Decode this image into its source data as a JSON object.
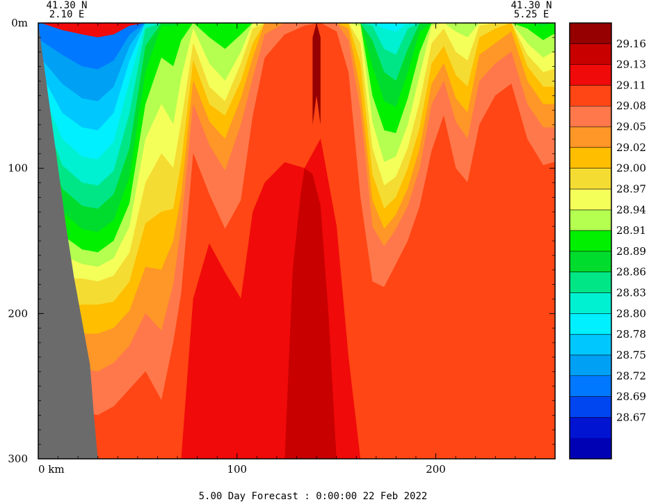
{
  "chart_data": {
    "type": "heatmap",
    "title": "",
    "footer": "5.00 Day Forecast :  0:00:00  22 Feb 2022",
    "xlabel_unit": "km",
    "ylabel_unit": "m",
    "x_ticks": [
      {
        "value": 0,
        "label": "0 km"
      },
      {
        "value": 100,
        "label": "100"
      },
      {
        "value": 200,
        "label": "200"
      }
    ],
    "y_ticks": [
      {
        "value": 0,
        "label": "0m"
      },
      {
        "value": 100,
        "label": "100"
      },
      {
        "value": 200,
        "label": "200"
      },
      {
        "value": 300,
        "label": "300"
      }
    ],
    "xlim": [
      0,
      260
    ],
    "ylim": [
      300,
      0
    ],
    "grid": false,
    "corners": {
      "left": {
        "lat": "41.30 N",
        "lon": "2.10 E"
      },
      "right": {
        "lat": "41.30 N",
        "lon": "5.25 E"
      }
    },
    "land_color": "#6b6b6b",
    "colorbar": {
      "placement": "right",
      "labels": [
        "29.16",
        "29.13",
        "29.11",
        "29.08",
        "29.05",
        "29.02",
        "29.00",
        "28.97",
        "28.94",
        "28.91",
        "28.89",
        "28.86",
        "28.83",
        "28.80",
        "28.78",
        "28.75",
        "28.72",
        "28.69",
        "28.67"
      ],
      "colors": [
        "#0000b4",
        "#0014d2",
        "#0046f0",
        "#0078ff",
        "#00a0f5",
        "#00c8ff",
        "#00f0ff",
        "#00f0d2",
        "#00e687",
        "#00dc2d",
        "#00f000",
        "#b4ff50",
        "#f5ff5a",
        "#f5dc32",
        "#ffbe00",
        "#ff9628",
        "#ff784b",
        "#ff4614",
        "#f00a0a",
        "#c80000",
        "#960000"
      ]
    },
    "columns": [
      {
        "x": 1,
        "bounds": [
          0,
          12,
          24,
          34,
          44,
          58,
          70,
          86,
          104,
          120,
          138,
          156,
          172,
          192,
          220,
          260,
          300
        ]
      },
      {
        "x": 12,
        "bounds": [
          5,
          22,
          42,
          62,
          80,
          98,
          114,
          130,
          146,
          160,
          176,
          196,
          212,
          236,
          262,
          300,
          300
        ]
      },
      {
        "x": 22,
        "bounds": [
          8,
          30,
          52,
          72,
          92,
          110,
          126,
          142,
          156,
          166,
          176,
          194,
          214,
          238,
          268,
          300,
          300
        ]
      },
      {
        "x": 30,
        "bounds": [
          10,
          32,
          54,
          74,
          94,
          112,
          128,
          144,
          158,
          168,
          178,
          194,
          214,
          240,
          270,
          300,
          300
        ]
      },
      {
        "x": 38,
        "bounds": [
          8,
          26,
          44,
          62,
          82,
          102,
          118,
          136,
          150,
          162,
          174,
          192,
          210,
          234,
          264,
          300,
          300
        ]
      },
      {
        "x": 46,
        "bounds": [
          2,
          8,
          16,
          26,
          40,
          62,
          86,
          106,
          124,
          140,
          158,
          178,
          198,
          222,
          252,
          300,
          300
        ]
      },
      {
        "x": 54,
        "bounds": [
          0,
          0,
          0,
          0,
          0,
          4,
          16,
          34,
          56,
          80,
          110,
          138,
          168,
          200,
          240,
          300,
          300
        ]
      },
      {
        "x": 62,
        "bounds": [
          0,
          0,
          0,
          0,
          0,
          0,
          0,
          2,
          24,
          56,
          90,
          130,
          170,
          212,
          260,
          300,
          300
        ]
      },
      {
        "x": 68,
        "bounds": [
          0,
          0,
          0,
          0,
          0,
          0,
          0,
          2,
          30,
          70,
          100,
          128,
          150,
          180,
          220,
          300,
          300
        ]
      },
      {
        "x": 72,
        "bounds": [
          0,
          0,
          0,
          0,
          0,
          0,
          0,
          0,
          12,
          38,
          68,
          96,
          118,
          140,
          186,
          300,
          300
        ]
      },
      {
        "x": 78,
        "bounds": [
          0,
          0,
          0,
          0,
          0,
          0,
          0,
          0,
          0,
          4,
          14,
          26,
          40,
          56,
          90,
          190,
          300
        ]
      },
      {
        "x": 86,
        "bounds": [
          0,
          0,
          0,
          0,
          0,
          0,
          0,
          0,
          10,
          28,
          44,
          56,
          68,
          84,
          118,
          152,
          300
        ]
      },
      {
        "x": 94,
        "bounds": [
          0,
          0,
          0,
          0,
          0,
          0,
          0,
          0,
          18,
          40,
          54,
          64,
          80,
          102,
          142,
          172,
          300
        ]
      },
      {
        "x": 102,
        "bounds": [
          0,
          0,
          0,
          0,
          0,
          0,
          0,
          0,
          8,
          20,
          28,
          40,
          52,
          70,
          122,
          190,
          300
        ]
      },
      {
        "x": 108,
        "bounds": [
          0,
          0,
          0,
          0,
          0,
          0,
          0,
          0,
          0,
          0,
          4,
          14,
          24,
          38,
          64,
          130,
          300
        ]
      },
      {
        "x": 114,
        "bounds": [
          0,
          0,
          0,
          0,
          0,
          0,
          0,
          0,
          0,
          0,
          0,
          0,
          0,
          8,
          24,
          110,
          300
        ]
      },
      {
        "x": 124,
        "bounds": [
          0,
          0,
          0,
          0,
          0,
          0,
          0,
          0,
          0,
          0,
          0,
          0,
          0,
          0,
          8,
          96,
          300
        ]
      },
      {
        "x": 134,
        "bounds": [
          0,
          0,
          0,
          0,
          0,
          0,
          0,
          0,
          0,
          0,
          0,
          0,
          0,
          0,
          2,
          100,
          300
        ]
      },
      {
        "x": 142,
        "bounds": [
          0,
          0,
          0,
          0,
          0,
          0,
          0,
          0,
          0,
          0,
          0,
          0,
          0,
          0,
          0,
          80,
          300
        ]
      },
      {
        "x": 150,
        "bounds": [
          0,
          0,
          0,
          0,
          0,
          0,
          0,
          0,
          0,
          0,
          0,
          0,
          0,
          0,
          6,
          140,
          300
        ]
      },
      {
        "x": 156,
        "bounds": [
          0,
          0,
          0,
          0,
          0,
          0,
          0,
          0,
          0,
          0,
          0,
          0,
          4,
          12,
          34,
          230,
          300
        ]
      },
      {
        "x": 162,
        "bounds": [
          0,
          0,
          0,
          0,
          0,
          0,
          0,
          0,
          0,
          2,
          14,
          28,
          46,
          60,
          120,
          300,
          300
        ]
      },
      {
        "x": 168,
        "bounds": [
          0,
          0,
          0,
          0,
          0,
          2,
          12,
          30,
          50,
          68,
          86,
          104,
          122,
          140,
          178,
          300,
          300
        ]
      },
      {
        "x": 174,
        "bounds": [
          0,
          0,
          0,
          0,
          4,
          18,
          34,
          54,
          74,
          96,
          112,
          128,
          142,
          154,
          182,
          300,
          300
        ]
      },
      {
        "x": 180,
        "bounds": [
          0,
          0,
          0,
          0,
          6,
          22,
          40,
          58,
          76,
          92,
          106,
          120,
          132,
          142,
          166,
          300,
          300
        ]
      },
      {
        "x": 186,
        "bounds": [
          0,
          0,
          0,
          0,
          0,
          4,
          18,
          34,
          52,
          70,
          86,
          100,
          114,
          126,
          150,
          300,
          300
        ]
      },
      {
        "x": 192,
        "bounds": [
          0,
          0,
          0,
          0,
          0,
          0,
          0,
          6,
          20,
          36,
          54,
          72,
          86,
          100,
          126,
          300,
          300
        ]
      },
      {
        "x": 198,
        "bounds": [
          0,
          0,
          0,
          0,
          0,
          0,
          0,
          0,
          0,
          2,
          14,
          28,
          42,
          56,
          88,
          300,
          300
        ]
      },
      {
        "x": 204,
        "bounds": [
          0,
          0,
          0,
          0,
          0,
          0,
          0,
          0,
          0,
          0,
          4,
          16,
          28,
          40,
          64,
          300,
          300
        ]
      },
      {
        "x": 210,
        "bounds": [
          0,
          0,
          0,
          0,
          0,
          0,
          0,
          0,
          0,
          6,
          20,
          36,
          52,
          68,
          100,
          300,
          300
        ]
      },
      {
        "x": 216,
        "bounds": [
          0,
          0,
          0,
          0,
          0,
          0,
          0,
          0,
          0,
          10,
          26,
          44,
          62,
          80,
          110,
          300,
          300
        ]
      },
      {
        "x": 222,
        "bounds": [
          0,
          0,
          0,
          0,
          0,
          0,
          0,
          0,
          0,
          0,
          2,
          10,
          22,
          40,
          70,
          300,
          300
        ]
      },
      {
        "x": 230,
        "bounds": [
          0,
          0,
          0,
          0,
          0,
          0,
          0,
          0,
          0,
          0,
          0,
          4,
          14,
          28,
          50,
          300,
          300
        ]
      },
      {
        "x": 238,
        "bounds": [
          0,
          0,
          0,
          0,
          0,
          0,
          0,
          0,
          0,
          0,
          0,
          0,
          6,
          20,
          42,
          300,
          300
        ]
      },
      {
        "x": 246,
        "bounds": [
          0,
          0,
          0,
          0,
          0,
          0,
          0,
          0,
          4,
          14,
          22,
          30,
          40,
          56,
          80,
          300,
          300
        ]
      },
      {
        "x": 254,
        "bounds": [
          0,
          0,
          0,
          0,
          0,
          0,
          0,
          2,
          12,
          24,
          34,
          44,
          56,
          72,
          98,
          300,
          300
        ]
      },
      {
        "x": 259,
        "bounds": [
          0,
          0,
          0,
          0,
          0,
          0,
          0,
          0,
          8,
          20,
          32,
          44,
          56,
          72,
          96,
          300,
          300
        ]
      }
    ],
    "bottom_profile": [
      [
        0,
        0
      ],
      [
        4,
        40
      ],
      [
        8,
        80
      ],
      [
        14,
        140
      ],
      [
        18,
        175
      ],
      [
        22,
        205
      ],
      [
        26,
        235
      ],
      [
        28,
        270
      ],
      [
        30,
        300
      ]
    ],
    "coastline_note": ""
  }
}
